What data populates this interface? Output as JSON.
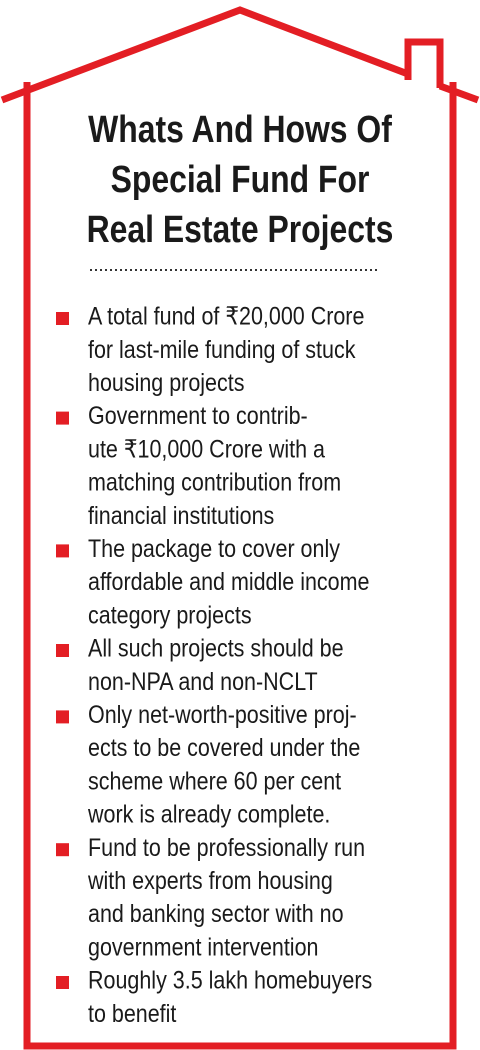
{
  "title": {
    "lines": [
      "Whats And Hows Of",
      "Special Fund For",
      "Real Estate Projects"
    ]
  },
  "items": [
    {
      "lines": [
        "A total fund of ₹20,000 Crore",
        "for last-mile funding of stuck",
        "housing projects"
      ]
    },
    {
      "lines": [
        "Government to contrib-",
        "ute ₹10,000 Crore with a",
        "matching contribution from",
        "financial institutions"
      ]
    },
    {
      "lines": [
        "The package to cover only",
        "affordable and middle income",
        "category projects"
      ]
    },
    {
      "lines": [
        "All such projects should be",
        "non-NPA and non-NCLT"
      ]
    },
    {
      "lines": [
        "Only net-worth-positive proj-",
        "ects to be covered under the",
        "scheme where 60 per cent",
        "work is already complete."
      ]
    },
    {
      "lines": [
        "Fund to be professionally run",
        "with experts from housing",
        "and banking sector with no",
        "government intervention"
      ]
    },
    {
      "lines": [
        "Roughly 3.5 lakh homebuyers",
        "to benefit"
      ]
    }
  ]
}
